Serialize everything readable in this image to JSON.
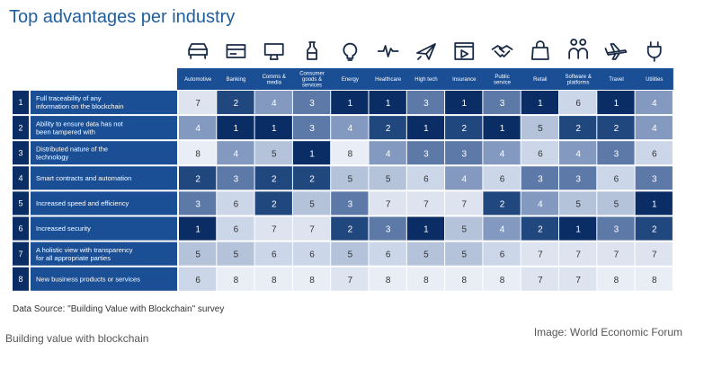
{
  "title": "Top advantages per industry",
  "source": "Data Source: \"Building Value with Blockchain\" survey",
  "credit": "Image: World Economic Forum",
  "caption": "Building value with blockchain",
  "colors": {
    "header_bg": "#1a4f95",
    "heat_scale": [
      "#0a2d66",
      "#21477f",
      "#5d79a8",
      "#8399bf",
      "#b4c2da",
      "#cbd6e8",
      "#dde4f0",
      "#e9eef6"
    ]
  },
  "chart_data": {
    "type": "heatmap",
    "title": "Top advantages per industry",
    "x_categories": [
      "Automotive",
      "Banking",
      "Comms & media",
      "Consumer goods & services",
      "Energy",
      "Healthcare",
      "High tech",
      "Insurance",
      "Public service",
      "Retail",
      "Software & platforms",
      "Travel",
      "Utilities"
    ],
    "x_icons": [
      "car-icon",
      "credit-card-icon",
      "monitor-icon",
      "bottle-icon",
      "lightbulb-icon",
      "heartbeat-icon",
      "paper-plane-icon",
      "media-player-icon",
      "handshake-icon",
      "shopping-bag-icon",
      "people-icon",
      "airplane-icon",
      "power-plug-icon"
    ],
    "rows": [
      {
        "rank": "1",
        "label": "Full traceability of any information on the blockchain",
        "values": [
          7,
          2,
          4,
          3,
          1,
          1,
          3,
          1,
          3,
          1,
          6,
          1,
          4
        ]
      },
      {
        "rank": "2",
        "label": "Ability to ensure data has not been tampered with",
        "values": [
          4,
          1,
          1,
          3,
          4,
          2,
          1,
          2,
          1,
          5,
          2,
          2,
          4
        ]
      },
      {
        "rank": "3",
        "label": "Distributed nature of the technology",
        "values": [
          8,
          4,
          5,
          1,
          8,
          4,
          3,
          3,
          4,
          6,
          4,
          3,
          6
        ]
      },
      {
        "rank": "4",
        "label": "Smart contracts and automation",
        "values": [
          2,
          3,
          2,
          2,
          5,
          5,
          6,
          4,
          6,
          3,
          3,
          6,
          3
        ]
      },
      {
        "rank": "5",
        "label": "Increased speed and efficiency",
        "values": [
          3,
          6,
          2,
          5,
          3,
          7,
          7,
          7,
          2,
          4,
          5,
          5,
          1
        ]
      },
      {
        "rank": "6",
        "label": "Increased security",
        "values": [
          1,
          6,
          7,
          7,
          2,
          3,
          1,
          5,
          4,
          2,
          1,
          3,
          2
        ]
      },
      {
        "rank": "7",
        "label": "A holistic view with transparency for all appropriate parties",
        "values": [
          5,
          5,
          6,
          6,
          5,
          6,
          5,
          5,
          6,
          7,
          7,
          7,
          7
        ]
      },
      {
        "rank": "8",
        "label": "New business products or services",
        "values": [
          6,
          8,
          8,
          8,
          7,
          8,
          8,
          8,
          8,
          7,
          7,
          8,
          8
        ]
      }
    ],
    "value_range": [
      1,
      8
    ],
    "legend": "none"
  }
}
